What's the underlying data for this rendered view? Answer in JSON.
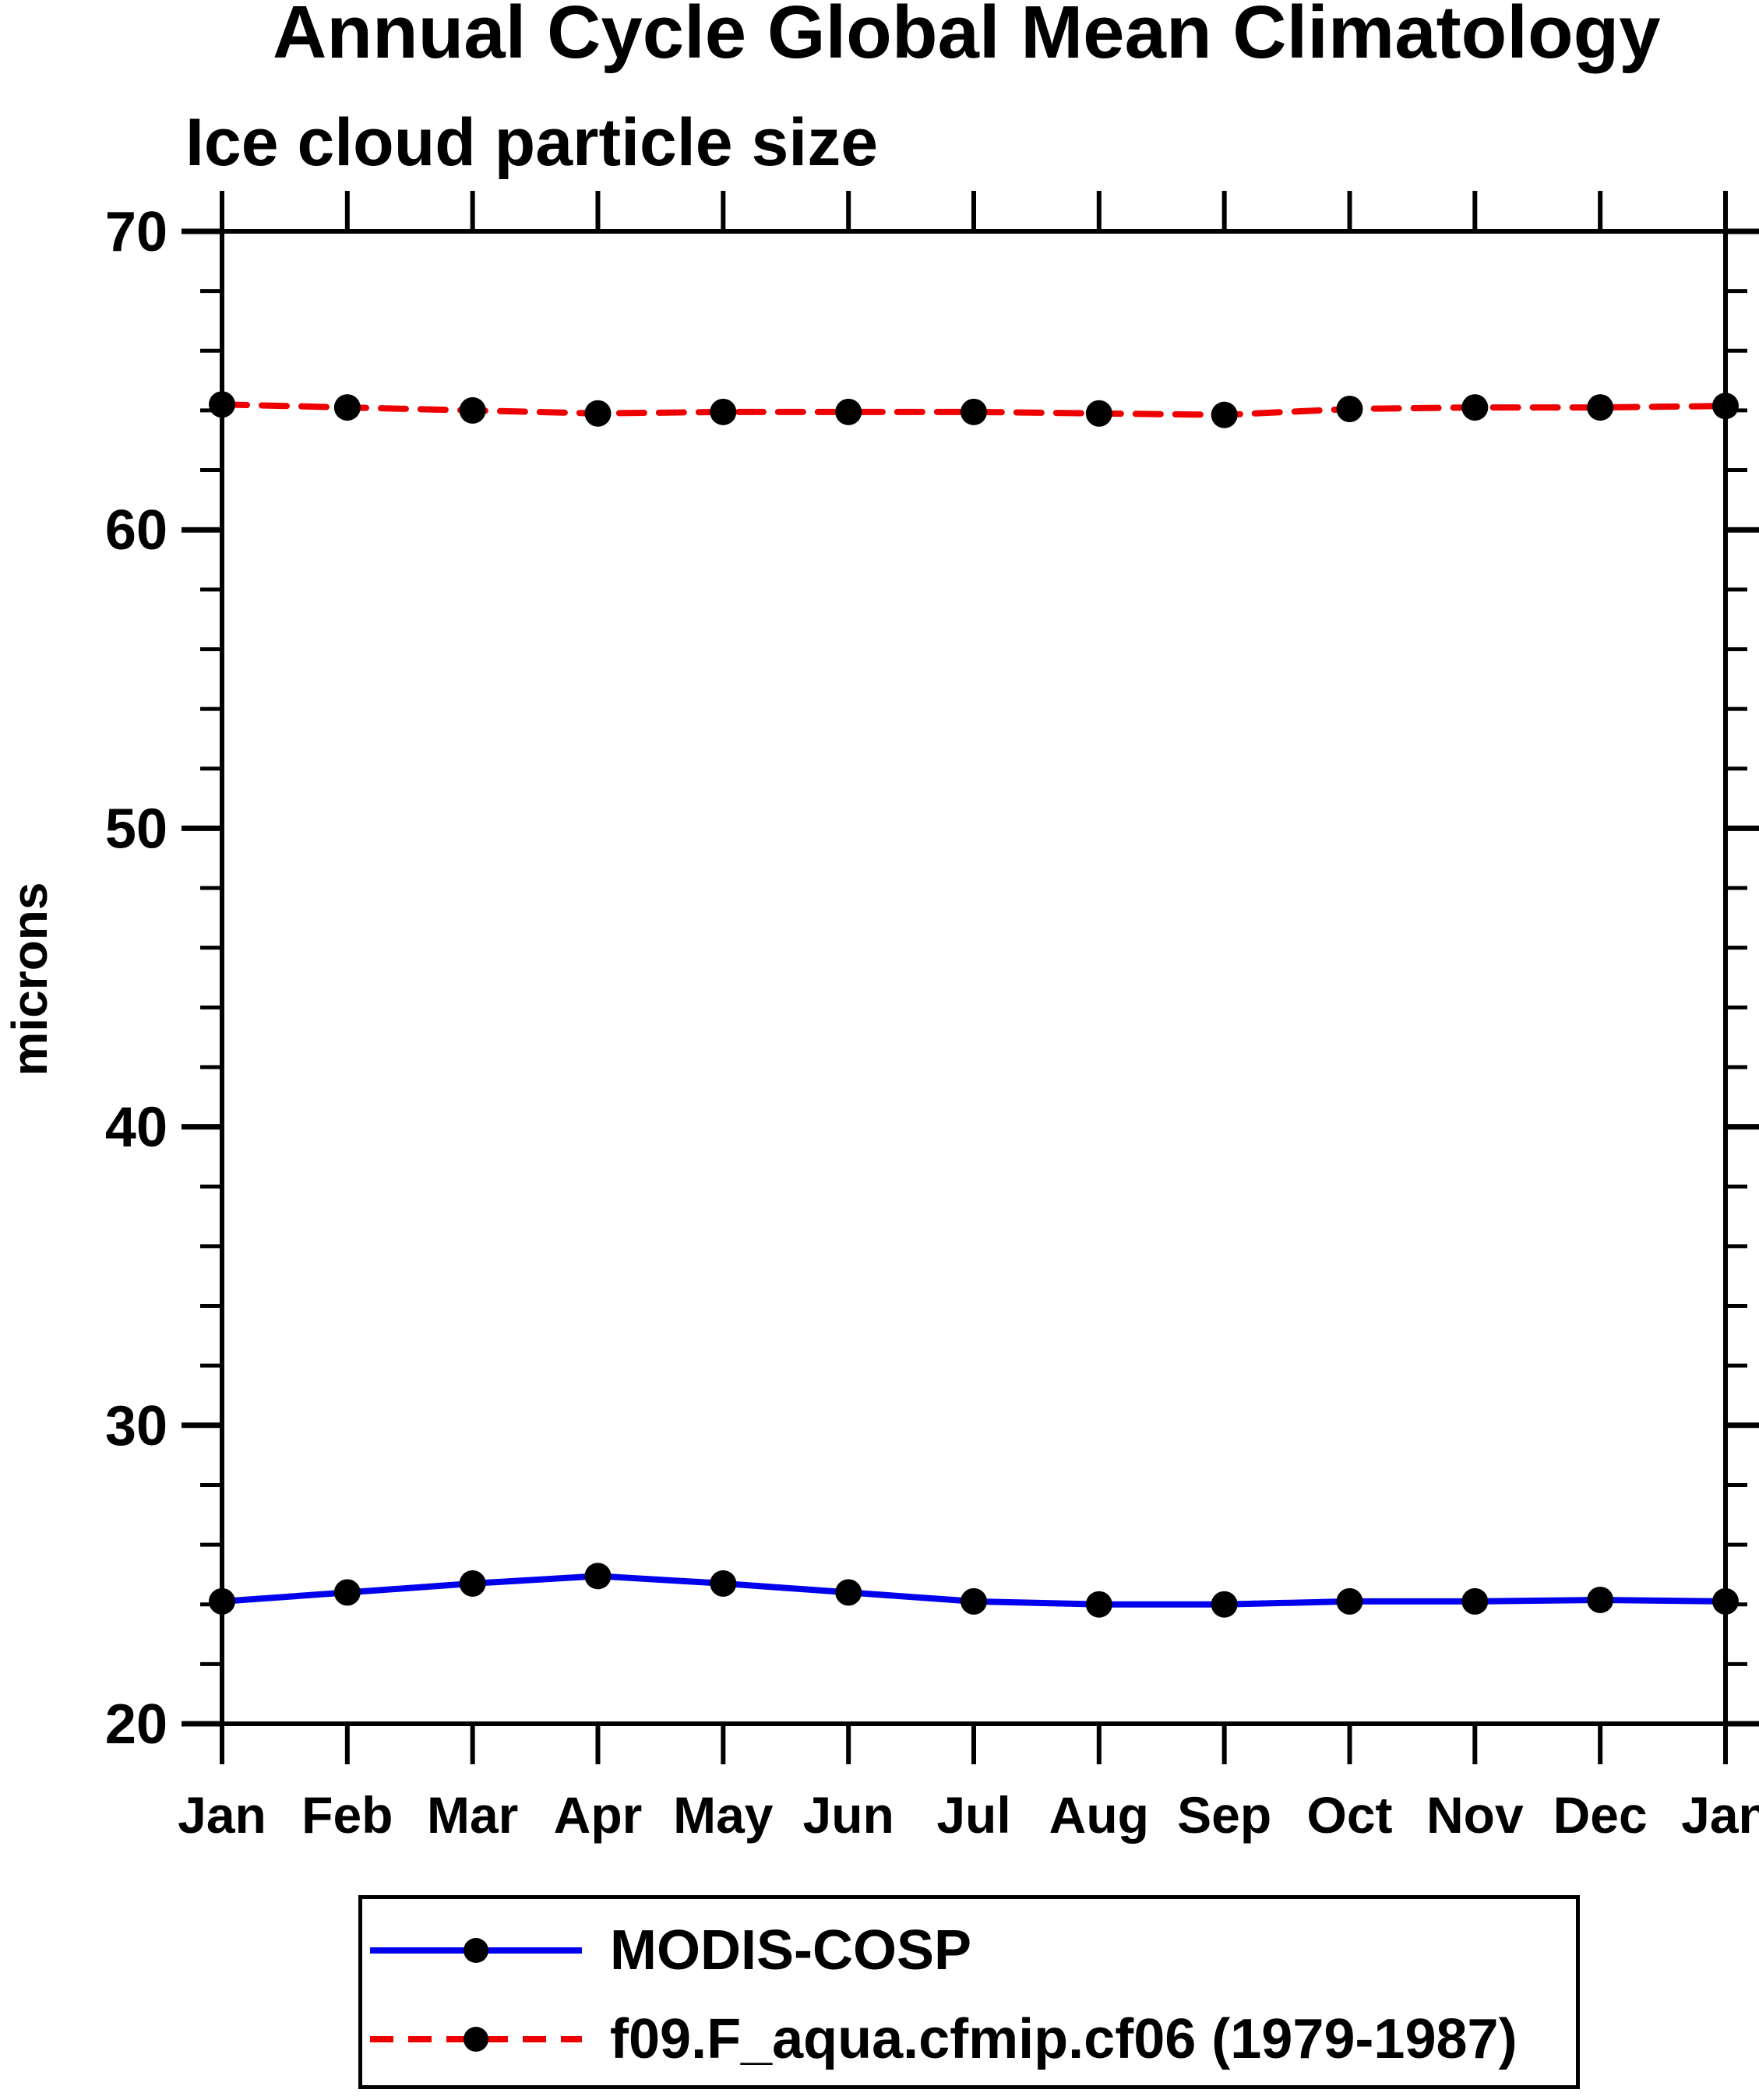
{
  "page": {
    "title": "Annual Cycle Global Mean Climatology",
    "subtitle": "Ice cloud particle size"
  },
  "chart_data": {
    "type": "line",
    "title": "Annual Cycle Global Mean Climatology",
    "subtitle": "Ice cloud particle size",
    "xlabel": "",
    "ylabel": "microns",
    "categories": [
      "Jan",
      "Feb",
      "Mar",
      "Apr",
      "May",
      "Jun",
      "Jul",
      "Aug",
      "Sep",
      "Oct",
      "Nov",
      "Dec",
      "Jan"
    ],
    "ylim": [
      20,
      70
    ],
    "yticks_major": [
      20,
      30,
      40,
      50,
      60,
      70
    ],
    "ytick_minor_interval": 2,
    "grid": false,
    "legend_position": "bottom",
    "series": [
      {
        "name": "MODIS-COSP",
        "color": "#0000ee",
        "line_style": "solid",
        "marker": "circle",
        "marker_color": "#000000",
        "values": [
          24.1,
          24.4,
          24.7,
          24.95,
          24.7,
          24.4,
          24.1,
          24.0,
          24.0,
          24.1,
          24.1,
          24.15,
          24.1
        ]
      },
      {
        "name": "f09.F_aqua.cfmip.cf06 (1979-1987)",
        "color": "#ee0000",
        "line_style": "dashed",
        "marker": "circle",
        "marker_color": "#000000",
        "values": [
          64.2,
          64.1,
          64.0,
          63.9,
          63.95,
          63.95,
          63.95,
          63.9,
          63.85,
          64.05,
          64.1,
          64.1,
          64.15
        ]
      }
    ]
  },
  "colors": {
    "axis": "#000000",
    "background": "#ffffff",
    "text": "#000000"
  }
}
